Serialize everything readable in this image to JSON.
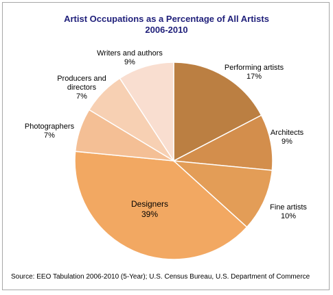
{
  "chart_data": {
    "type": "pie",
    "title": "Artist Occupations as a Percentage of All Artists",
    "subtitle": "2006-2010",
    "source": "Source: EEO Tabulation 2006-2010 (5-Year); U.S. Census Bureau, U.S. Department of Commerce",
    "slices": [
      {
        "label_lines": [
          "Performing artists"
        ],
        "value": 17,
        "value_label": "17%",
        "color": "#bb7f42"
      },
      {
        "label_lines": [
          "Architects"
        ],
        "value": 9,
        "value_label": "9%",
        "color": "#d38e4c"
      },
      {
        "label_lines": [
          "Fine artists"
        ],
        "value": 10,
        "value_label": "10%",
        "color": "#e39d57"
      },
      {
        "label_lines": [
          "Designers"
        ],
        "value": 39,
        "value_label": "39%",
        "color": "#f2a862"
      },
      {
        "label_lines": [
          "Photographers"
        ],
        "value": 7,
        "value_label": "7%",
        "color": "#f4bf95"
      },
      {
        "label_lines": [
          "Producers and",
          "directors"
        ],
        "value": 7,
        "value_label": "7%",
        "color": "#f7d0b3"
      },
      {
        "label_lines": [
          "Writers and authors"
        ],
        "value": 9,
        "value_label": "9%",
        "color": "#f9ded0"
      }
    ]
  }
}
